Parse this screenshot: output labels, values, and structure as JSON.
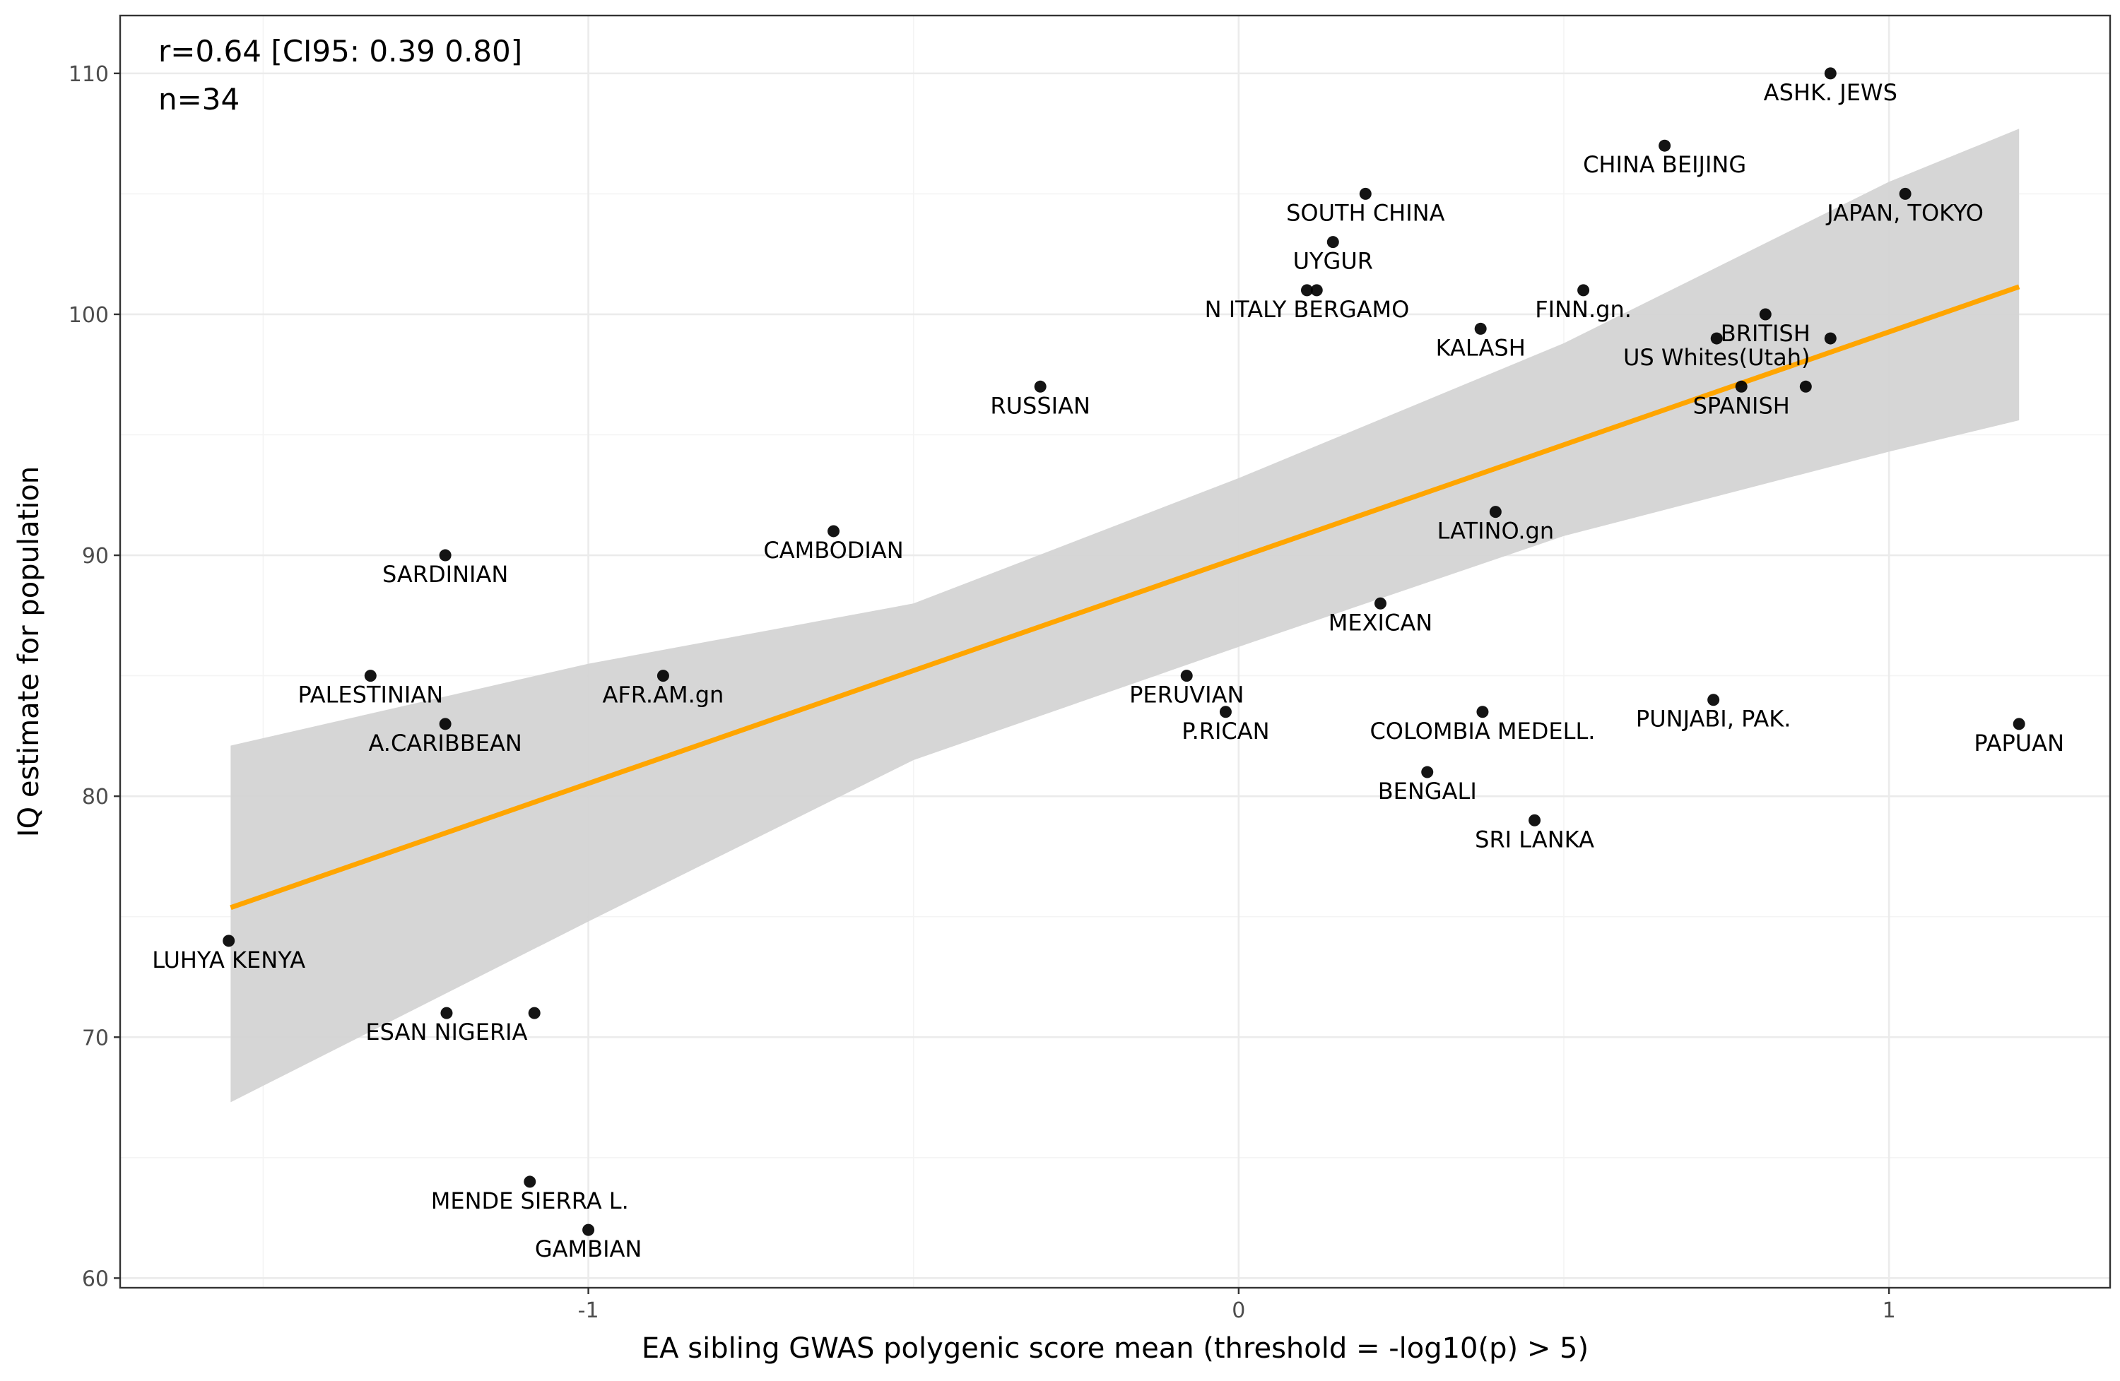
{
  "chart_data": {
    "type": "scatter",
    "title": "",
    "xlabel": "EA sibling GWAS polygenic score mean (threshold = -log10(p) > 5)",
    "ylabel": "IQ estimate for population",
    "xlim": [
      -1.72,
      1.34
    ],
    "ylim": [
      59.6,
      112.4
    ],
    "x_ticks": [
      -1,
      0,
      1
    ],
    "x_tick_labels": [
      "-1",
      "0",
      "1"
    ],
    "x_minor_ticks": [
      -1.5,
      -0.5,
      0.5
    ],
    "y_ticks": [
      60,
      70,
      80,
      90,
      100,
      110
    ],
    "y_tick_labels": [
      "60",
      "70",
      "80",
      "90",
      "100",
      "110"
    ],
    "y_minor_ticks": [
      65,
      75,
      85,
      95,
      105
    ],
    "grid": true,
    "annotations": [
      "r=0.64 [CI95: 0.39 0.80]",
      "n=34"
    ],
    "colors": {
      "points": "#000000",
      "fit_line": "#FFA500",
      "confidence_band": "#d3d3d3",
      "panel_border": "#333333"
    },
    "fit": {
      "intercept": 89.9,
      "slope": 9.37,
      "x_range": [
        -1.55,
        1.2
      ]
    },
    "confidence_band": {
      "x": [
        -1.55,
        -1.0,
        -0.5,
        0.0,
        0.5,
        1.0,
        1.2
      ],
      "lower": [
        67.3,
        74.8,
        81.5,
        86.2,
        90.8,
        94.3,
        95.6
      ],
      "upper": [
        82.1,
        85.5,
        88.0,
        93.2,
        98.8,
        105.5,
        107.7
      ]
    },
    "points": [
      {
        "label": "ASHK. JEWS",
        "x": 0.91,
        "y": 110,
        "label_pos": "below"
      },
      {
        "label": "CHINA BEIJING",
        "x": 0.655,
        "y": 107,
        "label_pos": "below"
      },
      {
        "label": "JAPAN, TOKYO",
        "x": 1.025,
        "y": 105,
        "label_pos": "below"
      },
      {
        "label": "SOUTH CHINA",
        "x": 0.195,
        "y": 105,
        "label_pos": "below"
      },
      {
        "label": "UYGUR",
        "x": 0.145,
        "y": 103,
        "label_pos": "below"
      },
      {
        "label": "N ITALY BERGAMO",
        "x": 0.105,
        "y": 101,
        "label_pos": "below"
      },
      {
        "label": "",
        "x": 0.12,
        "y": 101
      },
      {
        "label": "FINN.gn.",
        "x": 0.53,
        "y": 101,
        "label_pos": "below"
      },
      {
        "label": "KALASH",
        "x": 0.372,
        "y": 99.4,
        "label_pos": "below"
      },
      {
        "label": "BRITISH",
        "x": 0.81,
        "y": 100,
        "label_pos": "below"
      },
      {
        "label": "US Whites(Utah)",
        "x": 0.735,
        "y": 99,
        "label_pos": "below"
      },
      {
        "label": "",
        "x": 0.91,
        "y": 99
      },
      {
        "label": "SPANISH",
        "x": 0.773,
        "y": 97,
        "label_pos": "below"
      },
      {
        "label": "",
        "x": 0.872,
        "y": 97
      },
      {
        "label": "RUSSIAN",
        "x": -0.305,
        "y": 97,
        "label_pos": "below"
      },
      {
        "label": "LATINO.gn",
        "x": 0.395,
        "y": 91.8,
        "label_pos": "below"
      },
      {
        "label": "CAMBODIAN",
        "x": -0.623,
        "y": 91,
        "label_pos": "below"
      },
      {
        "label": "SARDINIAN",
        "x": -1.22,
        "y": 90,
        "label_pos": "below"
      },
      {
        "label": "MEXICAN",
        "x": 0.218,
        "y": 88,
        "label_pos": "below"
      },
      {
        "label": "PALESTINIAN",
        "x": -1.335,
        "y": 85,
        "label_pos": "below"
      },
      {
        "label": "AFR.AM.gn",
        "x": -0.885,
        "y": 85,
        "label_pos": "below"
      },
      {
        "label": "PERUVIAN",
        "x": -0.08,
        "y": 85,
        "label_pos": "below"
      },
      {
        "label": "P.RICAN",
        "x": -0.02,
        "y": 83.5,
        "label_pos": "below"
      },
      {
        "label": "COLOMBIA MEDELL.",
        "x": 0.375,
        "y": 83.5,
        "label_pos": "below"
      },
      {
        "label": "PUNJABI, PAK.",
        "x": 0.73,
        "y": 84,
        "label_pos": "below"
      },
      {
        "label": "A.CARIBBEAN",
        "x": -1.22,
        "y": 83,
        "label_pos": "below"
      },
      {
        "label": "PAPUAN",
        "x": 1.2,
        "y": 83,
        "label_pos": "below"
      },
      {
        "label": "BENGALI",
        "x": 0.29,
        "y": 81,
        "label_pos": "below"
      },
      {
        "label": "SRI LANKA",
        "x": 0.455,
        "y": 79,
        "label_pos": "below"
      },
      {
        "label": "LUHYA KENYA",
        "x": -1.553,
        "y": 74,
        "label_pos": "below"
      },
      {
        "label": "ESAN NIGERIA",
        "x": -1.218,
        "y": 71,
        "label_pos": "below"
      },
      {
        "label": "",
        "x": -1.083,
        "y": 71
      },
      {
        "label": "MENDE SIERRA L.",
        "x": -1.09,
        "y": 64,
        "label_pos": "below"
      },
      {
        "label": "GAMBIAN",
        "x": -1.0,
        "y": 62,
        "label_pos": "below"
      }
    ]
  }
}
